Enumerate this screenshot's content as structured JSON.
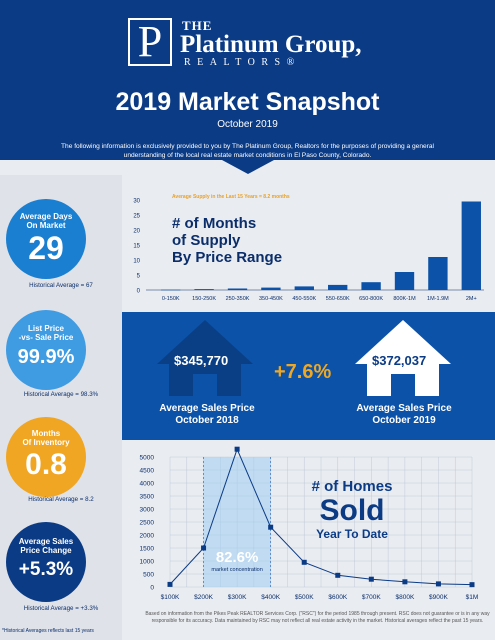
{
  "header": {
    "logo_the": "THE",
    "logo_name": "Platinum Group,",
    "logo_sub": "REALTORS®",
    "title": "2019 Market Snapshot",
    "subtitle": "October 2019",
    "intro": "The following information is exclusively provided to you by The Platinum Group, Realtors for the purposes of providing a general understanding of the local real estate market conditions in El Paso County, Colorado."
  },
  "stats": [
    {
      "label1": "Average Days",
      "label2": "On Market",
      "value": "29",
      "hist": "Historical Average = 67",
      "color": "#1a7fd0"
    },
    {
      "label1": "List Price",
      "label2": "-vs- Sale Price",
      "value": "99.9%",
      "hist": "Historical Average = 98.3%",
      "color": "#3f9be2"
    },
    {
      "label1": "Months",
      "label2": "Of Inventory",
      "value": "0.8",
      "hist": "Historical Average = 8.2",
      "color": "#f0a523"
    },
    {
      "label1": "Average Sales",
      "label2": "Price Change",
      "value": "+5.3%",
      "hist": "Historical Average = +3.3%",
      "color": "#0b3b85"
    }
  ],
  "hist_note": "*Historical Averages reflects last 15 years",
  "supply": {
    "title1": "# of Months",
    "title2": "of Supply",
    "title3": "By Price Range",
    "note": "Average Supply in the Last 15 Years = 8.2 months"
  },
  "price": {
    "left_value": "$345,770",
    "left_cap1": "Average Sales Price",
    "left_cap2": "October 2018",
    "change": "+7.6%",
    "right_value": "$372,037",
    "right_cap1": "Average Sales Price",
    "right_cap2": "October 2019"
  },
  "sold": {
    "t1": "# of Homes",
    "t2": "Sold",
    "t3": "Year To Date",
    "concentration_value": "82.6%",
    "concentration_label": "market concentration"
  },
  "footnote": "Based on information from the Pikes Peak REALTOR Services Corp. (\"RSC\") for the period 1985 through present. RSC does not guarantee or is in any way responsible for its accuracy. Data maintained by RSC may not reflect all real estate activity in the market. Historical averages reflect the past 15 years.",
  "chart_data": [
    {
      "type": "bar",
      "categories": [
        "0-150K",
        "150-250K",
        "250-350K",
        "350-450K",
        "450-550K",
        "550-650K",
        "650-800K",
        "800K-1M",
        "1M-1.9M",
        "2M+"
      ],
      "values": [
        0.1,
        0.3,
        0.5,
        0.8,
        1.2,
        1.7,
        2.6,
        6.0,
        11.0,
        29.5
      ],
      "ylim": [
        0,
        30
      ],
      "yticks": [
        0,
        5,
        10,
        15,
        20,
        25,
        30
      ],
      "color": "#0b52a8"
    },
    {
      "type": "line",
      "x": [
        "$100K",
        "$200K",
        "$300K",
        "$400K",
        "$500K",
        "$600K",
        "$700K",
        "$800K",
        "$900K",
        "$1M"
      ],
      "x_values": [
        100,
        150,
        200,
        250,
        300,
        350,
        400,
        450,
        500,
        550,
        600,
        650,
        700,
        750,
        800,
        850,
        900,
        950,
        1000
      ],
      "values": [
        100,
        1500,
        5300,
        2300,
        950,
        450,
        300,
        200,
        120,
        90
      ],
      "points_x": [
        100,
        200,
        300,
        400,
        500,
        600,
        700,
        800,
        900,
        1000
      ],
      "ylim": [
        0,
        5000
      ],
      "yticks": [
        0,
        500,
        1000,
        1500,
        2000,
        2500,
        3000,
        3500,
        4000,
        4500,
        5000
      ],
      "color": "#0b3b85",
      "highlight_range": [
        200,
        400
      ]
    }
  ]
}
